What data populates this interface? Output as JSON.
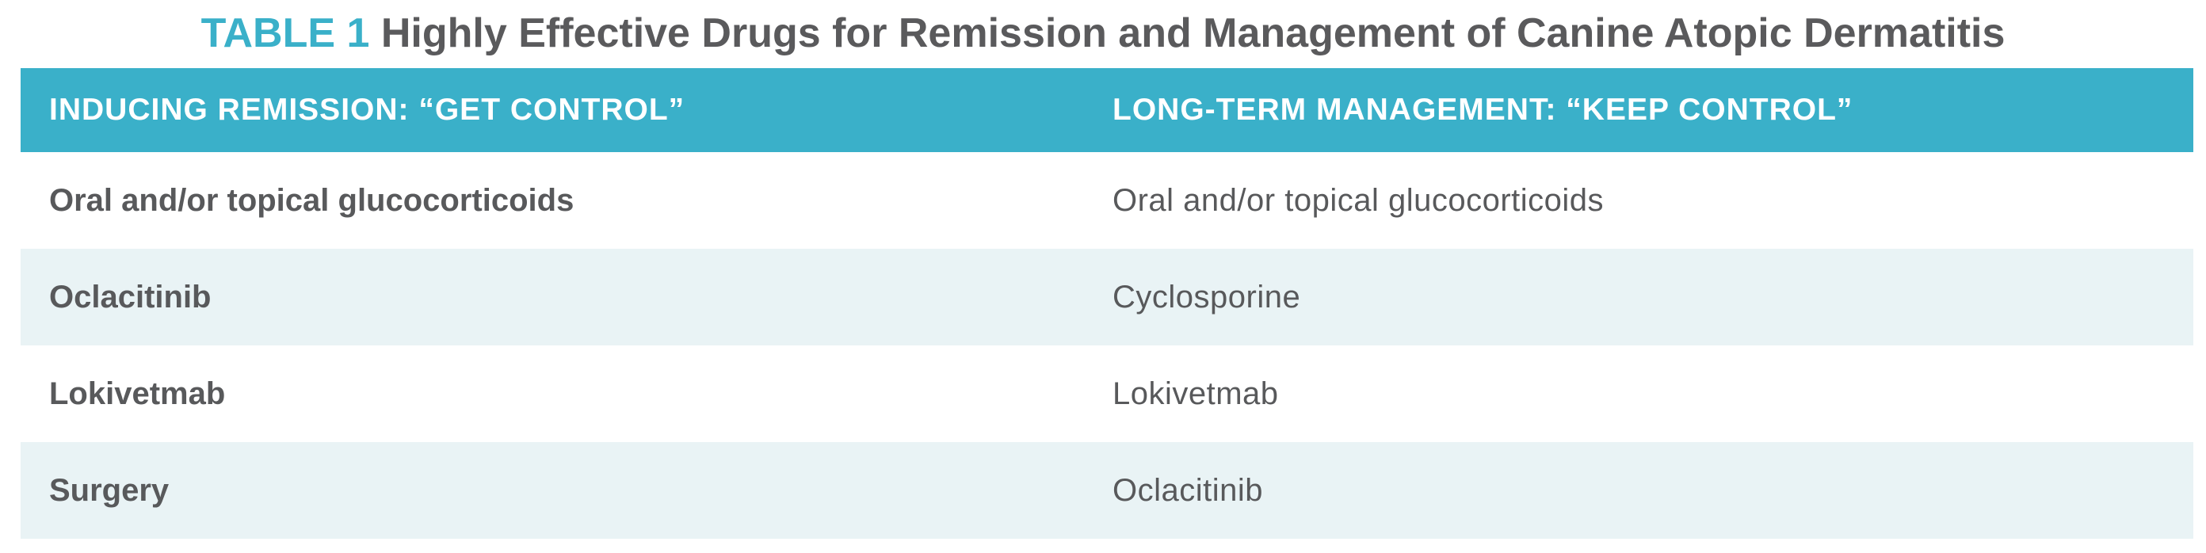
{
  "title": {
    "label": "TABLE 1",
    "text": "Highly Effective Drugs for Remission and Management of Canine Atopic Dermatitis"
  },
  "table": {
    "headers": [
      "INDUCING REMISSION: “GET CONTROL”",
      "LONG-TERM MANAGEMENT: “KEEP CONTROL”"
    ],
    "rows": [
      [
        "Oral and/or topical glucocorticoids",
        "Oral and/or topical glucocorticoids"
      ],
      [
        "Oclacitinib",
        "Cyclosporine"
      ],
      [
        "Lokivetmab",
        "Lokivetmab"
      ],
      [
        "Surgery",
        "Oclacitinib"
      ]
    ]
  },
  "colors": {
    "accent": "#3ab0c9",
    "text": "#58595b",
    "shaded_row": "#e9f3f5"
  }
}
